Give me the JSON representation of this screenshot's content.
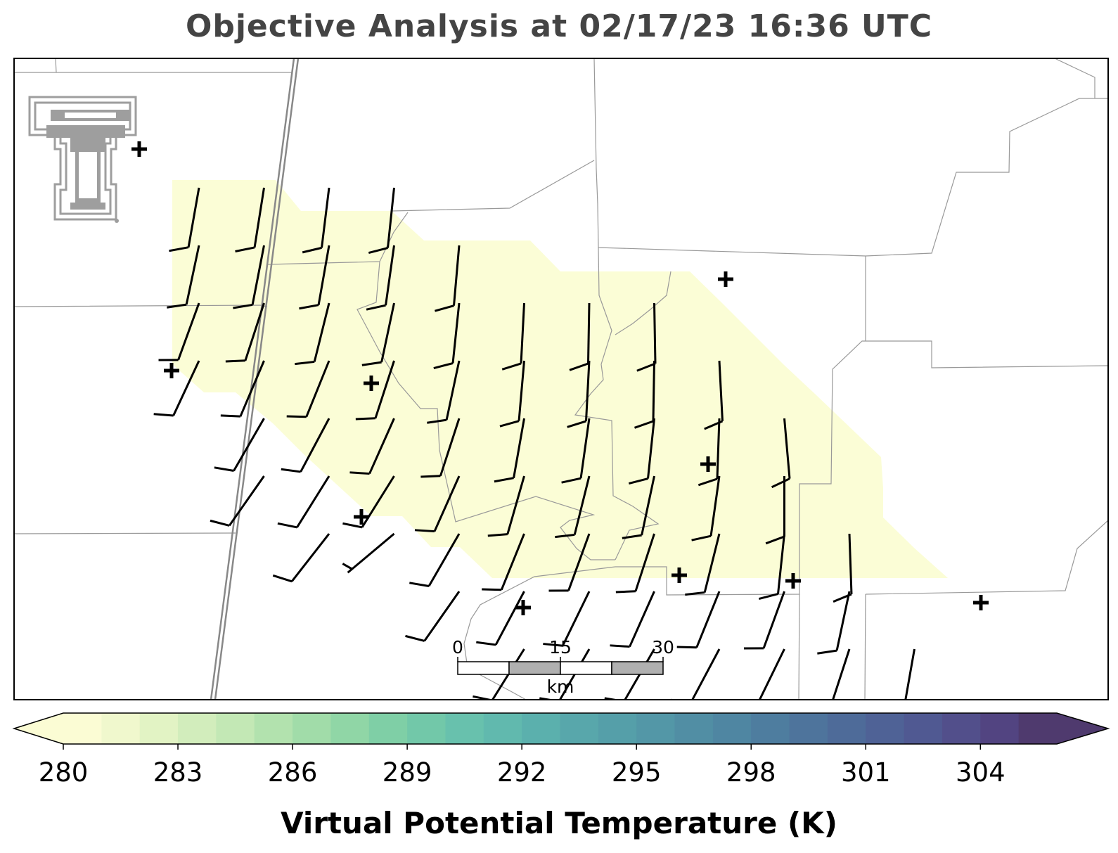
{
  "title": "Objective Analysis at 02/17/23 16:36 UTC",
  "colorbar": {
    "label": "Virtual Potential Temperature (K)",
    "ticks": [
      280,
      283,
      286,
      289,
      292,
      295,
      298,
      301,
      304
    ],
    "min": 280.0,
    "max": 306.0,
    "step": 1.0,
    "colors": [
      "#fbfcd4",
      "#f0f8cd",
      "#e2f3c4",
      "#d2edbc",
      "#c3e8b5",
      "#b2e2ae",
      "#a1dca9",
      "#90d6a6",
      "#7fcfa6",
      "#72c8a9",
      "#68c1ad",
      "#61b9ae",
      "#5bb0ad",
      "#58a7ab",
      "#559fa9",
      "#5397a7",
      "#518ea4",
      "#4f86a2",
      "#4e7d9f",
      "#4e749c",
      "#4e6b99",
      "#4f6296",
      "#505992",
      "#524f8b",
      "#524481",
      "#4f3a6e"
    ],
    "extend_min_color": "#fbfcd4",
    "extend_max_color": "#4f3a6e"
  },
  "scale_bar": {
    "labels": [
      "0",
      "15",
      "30"
    ],
    "unit": "km"
  },
  "logo": {
    "icon": "texas-tech-double-t-logo",
    "color": "#9e9e9e"
  },
  "map": {
    "analysis_fill_color": "#fbfdd6",
    "region_value_K": 280.5
  },
  "wind_barbs": [
    [
      7,
      3,
      14,
      190
    ],
    [
      7,
      4,
      14,
      192
    ],
    [
      7,
      5,
      14,
      200
    ],
    [
      7,
      6,
      14,
      205
    ],
    [
      8,
      3,
      14,
      189
    ],
    [
      8,
      4,
      14,
      191
    ],
    [
      8,
      5,
      14,
      198
    ],
    [
      8,
      6,
      14,
      203
    ],
    [
      8,
      7,
      14,
      210
    ],
    [
      8,
      8,
      10,
      215
    ],
    [
      9,
      3,
      14,
      187
    ],
    [
      9,
      4,
      14,
      190
    ],
    [
      9,
      5,
      14,
      194
    ],
    [
      9,
      6,
      14,
      202
    ],
    [
      9,
      7,
      14,
      208
    ],
    [
      9,
      8,
      12,
      212
    ],
    [
      9,
      9,
      10,
      218
    ],
    [
      10,
      3,
      14,
      186
    ],
    [
      10,
      4,
      14,
      188
    ],
    [
      10,
      5,
      14,
      192
    ],
    [
      10,
      6,
      14,
      198
    ],
    [
      10,
      7,
      14,
      204
    ],
    [
      10,
      8,
      10,
      212
    ],
    [
      10,
      9,
      8,
      230
    ],
    [
      11,
      4,
      14,
      185
    ],
    [
      11,
      5,
      14,
      186
    ],
    [
      11,
      6,
      14,
      192
    ],
    [
      11,
      7,
      14,
      198
    ],
    [
      11,
      8,
      14,
      204
    ],
    [
      11,
      9,
      12,
      210
    ],
    [
      11,
      10,
      10,
      215
    ],
    [
      12,
      5,
      14,
      183
    ],
    [
      12,
      6,
      14,
      185
    ],
    [
      12,
      7,
      14,
      190
    ],
    [
      12,
      8,
      14,
      196
    ],
    [
      12,
      9,
      14,
      202
    ],
    [
      12,
      10,
      12,
      208
    ],
    [
      12,
      11,
      10,
      212
    ],
    [
      13,
      5,
      14,
      181
    ],
    [
      13,
      6,
      14,
      183
    ],
    [
      13,
      7,
      14,
      188
    ],
    [
      13,
      8,
      14,
      194
    ],
    [
      13,
      9,
      14,
      200
    ],
    [
      13,
      10,
      12,
      206
    ],
    [
      13,
      11,
      10,
      210
    ],
    [
      14,
      5,
      14,
      179
    ],
    [
      14,
      6,
      14,
      181
    ],
    [
      14,
      7,
      14,
      186
    ],
    [
      14,
      8,
      14,
      192
    ],
    [
      14,
      9,
      14,
      198
    ],
    [
      14,
      10,
      12,
      204
    ],
    [
      14,
      11,
      10,
      210
    ],
    [
      15,
      6,
      14,
      177
    ],
    [
      15,
      7,
      14,
      182
    ],
    [
      15,
      8,
      14,
      188
    ],
    [
      15,
      9,
      14,
      194
    ],
    [
      15,
      10,
      12,
      202
    ],
    [
      15,
      11,
      10,
      208
    ],
    [
      16,
      7,
      14,
      175
    ],
    [
      16,
      8,
      14,
      180
    ],
    [
      16,
      9,
      14,
      186
    ],
    [
      16,
      10,
      14,
      200
    ],
    [
      16,
      11,
      12,
      206
    ],
    [
      17,
      9,
      14,
      178
    ],
    [
      17,
      10,
      12,
      192
    ],
    [
      17,
      11,
      10,
      198
    ],
    [
      18,
      11,
      10,
      190
    ]
  ]
}
